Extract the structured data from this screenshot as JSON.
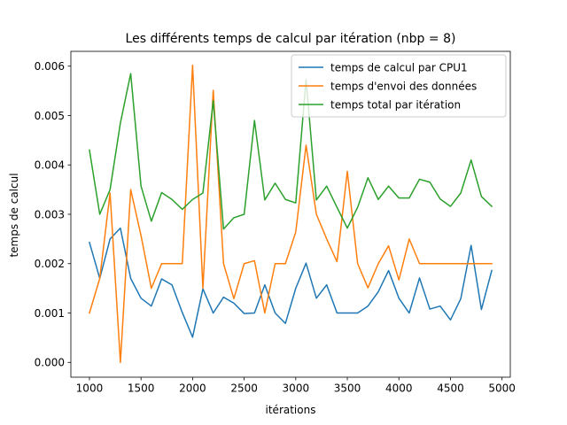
{
  "chart_data": {
    "type": "line",
    "title": "Les différents temps de calcul par itération (nbp = 8)",
    "xlabel": "itérations",
    "ylabel": "temps de calcul",
    "xlim": [
      820,
      5080
    ],
    "ylim": [
      -0.0003,
      0.0063
    ],
    "xticks": [
      1000,
      1500,
      2000,
      2500,
      3000,
      3500,
      4000,
      4500,
      5000
    ],
    "yticks": [
      0.0,
      0.001,
      0.002,
      0.003,
      0.004,
      0.005,
      0.006
    ],
    "ytick_labels": [
      "0.000",
      "0.001",
      "0.002",
      "0.003",
      "0.004",
      "0.005",
      "0.006"
    ],
    "grid": false,
    "legend_position": "top-right",
    "x": [
      1000,
      1100,
      1200,
      1300,
      1400,
      1500,
      1600,
      1700,
      1800,
      1900,
      2000,
      2100,
      2200,
      2300,
      2400,
      2500,
      2600,
      2700,
      2800,
      2900,
      3000,
      3100,
      3200,
      3300,
      3400,
      3500,
      3600,
      3700,
      3800,
      3900,
      4000,
      4100,
      4200,
      4300,
      4400,
      4500,
      4600,
      4700,
      4800,
      4900
    ],
    "series": [
      {
        "name": "temps de calcul par CPU1",
        "color": "#1f77b4",
        "values": [
          0.00243,
          0.0017,
          0.0025,
          0.00272,
          0.0017,
          0.0013,
          0.00114,
          0.00169,
          0.00157,
          0.00101,
          0.00051,
          0.00149,
          0.001,
          0.00132,
          0.0012,
          0.00099,
          0.001,
          0.00157,
          0.001,
          0.00079,
          0.0015,
          0.00201,
          0.0013,
          0.00157,
          0.001,
          0.001,
          0.001,
          0.00114,
          0.00143,
          0.00186,
          0.0013,
          0.001,
          0.00171,
          0.00108,
          0.00114,
          0.00086,
          0.00129,
          0.00237,
          0.00107,
          0.00186
        ]
      },
      {
        "name": "temps d'envoi des données",
        "color": "#ff7f0e",
        "values": [
          0.001,
          0.0017,
          0.00343,
          0.0,
          0.0035,
          0.00257,
          0.0015,
          0.002,
          0.002,
          0.002,
          0.00602,
          0.0015,
          0.00551,
          0.002,
          0.00129,
          0.002,
          0.00206,
          0.001,
          0.002,
          0.002,
          0.00264,
          0.0044,
          0.003,
          0.0025,
          0.00204,
          0.00387,
          0.002,
          0.00151,
          0.002,
          0.00236,
          0.00167,
          0.0025,
          0.002,
          0.002,
          0.002,
          0.002,
          0.002,
          0.002,
          0.002,
          0.002
        ]
      },
      {
        "name": "temps total par itération",
        "color": "#2ca02c",
        "values": [
          0.0043,
          0.003,
          0.0035,
          0.00485,
          0.00585,
          0.00357,
          0.00286,
          0.00344,
          0.0033,
          0.0031,
          0.0033,
          0.00343,
          0.0053,
          0.0027,
          0.00293,
          0.003,
          0.0049,
          0.00329,
          0.00363,
          0.0033,
          0.00323,
          0.00573,
          0.00329,
          0.00357,
          0.00314,
          0.00272,
          0.00314,
          0.00374,
          0.0033,
          0.00357,
          0.00333,
          0.00333,
          0.00371,
          0.00365,
          0.00331,
          0.00316,
          0.00343,
          0.0041,
          0.00336,
          0.00316
        ]
      }
    ]
  }
}
